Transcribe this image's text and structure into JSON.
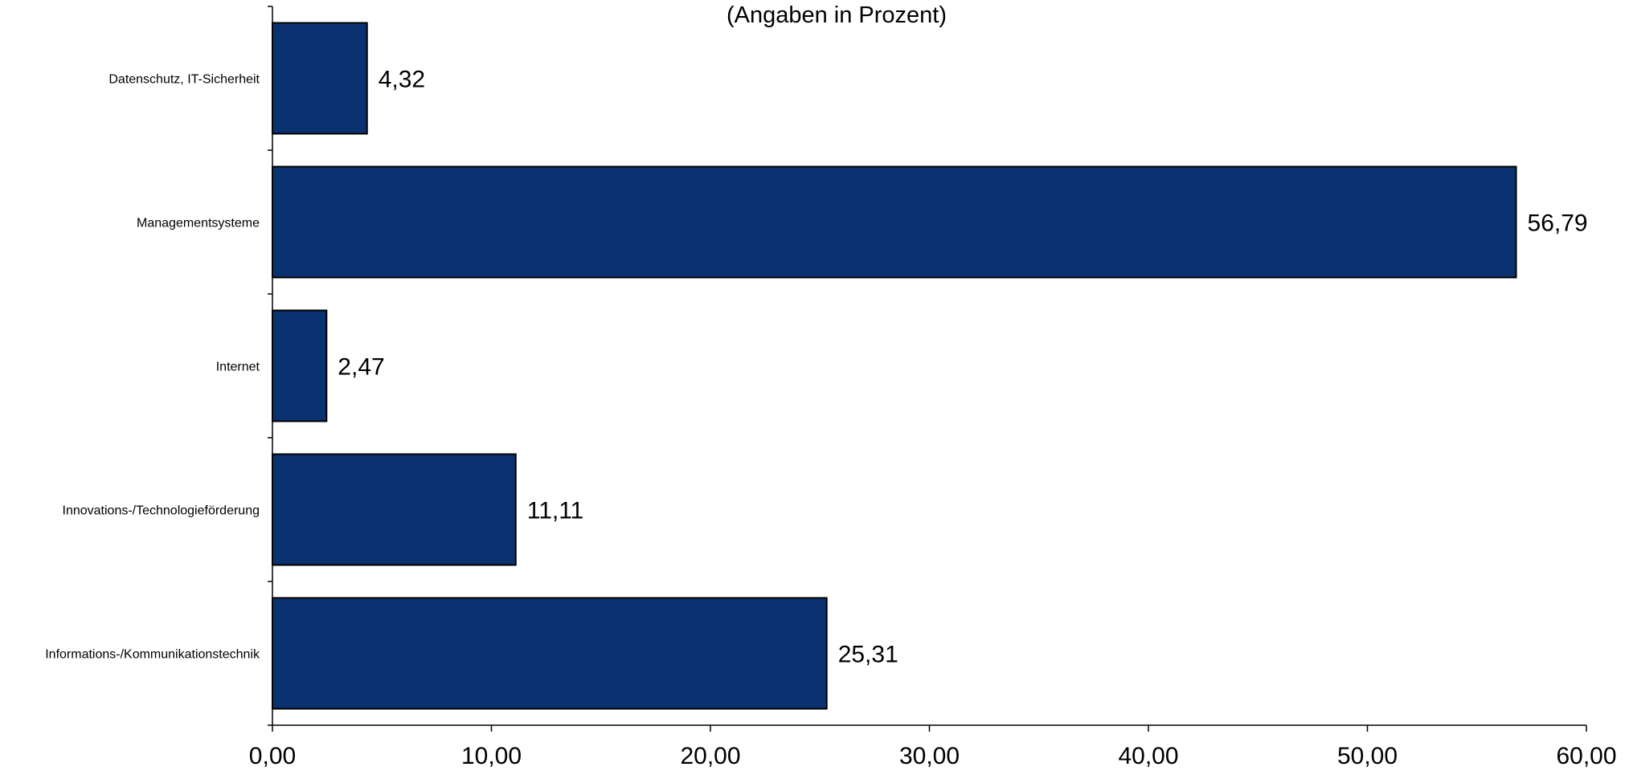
{
  "chart_data": {
    "type": "bar",
    "orientation": "horizontal",
    "subtitle": "(Angaben in Prozent)",
    "categories": [
      "Datenschutz, IT-Sicherheit",
      "Managementsysteme",
      "Internet",
      "Innovations-/Technologieförderung",
      "Informations-/Kommunikationstechnik"
    ],
    "values": [
      4.32,
      56.79,
      2.47,
      11.11,
      25.31
    ],
    "value_labels": [
      "4,32",
      "56,79",
      "2,47",
      "11,11",
      "25,31"
    ],
    "xlim": [
      0,
      60
    ],
    "x_ticks": [
      0,
      10,
      20,
      30,
      40,
      50,
      60
    ],
    "x_tick_labels": [
      "0,00",
      "10,00",
      "20,00",
      "30,00",
      "40,00",
      "50,00",
      "60,00"
    ],
    "grid": false,
    "legend": "none",
    "bar_color": "#0a3170",
    "bar_edge_color": "#000000"
  }
}
